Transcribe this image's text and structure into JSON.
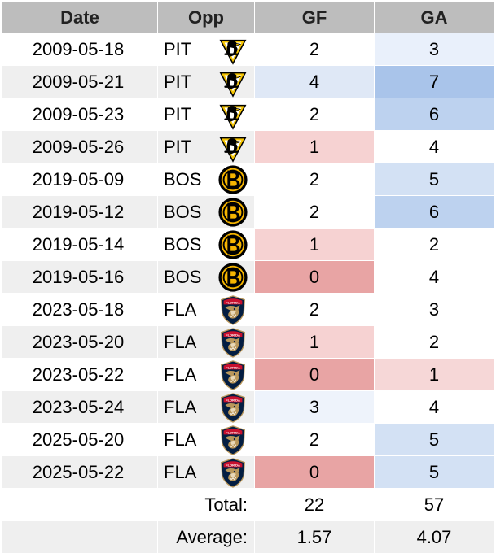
{
  "headers": {
    "date": "Date",
    "opp": "Opp",
    "gf": "GF",
    "ga": "GA"
  },
  "rows": [
    {
      "date": "2009-05-18",
      "opp": "PIT",
      "logo": "penguins-logo-icon",
      "gf": "2",
      "ga": "3",
      "gf_color": "#ffffff",
      "ga_color": "#e9f0fb"
    },
    {
      "date": "2009-05-21",
      "opp": "PIT",
      "logo": "penguins-logo-icon",
      "gf": "4",
      "ga": "7",
      "gf_color": "#dfe8f6",
      "ga_color": "#a9c4ea"
    },
    {
      "date": "2009-05-23",
      "opp": "PIT",
      "logo": "penguins-logo-icon",
      "gf": "2",
      "ga": "6",
      "gf_color": "#ffffff",
      "ga_color": "#bdd2ef"
    },
    {
      "date": "2009-05-26",
      "opp": "PIT",
      "logo": "penguins-logo-icon",
      "gf": "1",
      "ga": "4",
      "gf_color": "#f6d2d2",
      "ga_color": "#ffffff"
    },
    {
      "date": "2019-05-09",
      "opp": "BOS",
      "logo": "bruins-logo-icon",
      "gf": "2",
      "ga": "5",
      "gf_color": "#ffffff",
      "ga_color": "#d3e1f4"
    },
    {
      "date": "2019-05-12",
      "opp": "BOS",
      "logo": "bruins-logo-icon",
      "gf": "2",
      "ga": "6",
      "gf_color": "#ffffff",
      "ga_color": "#bdd2ef"
    },
    {
      "date": "2019-05-14",
      "opp": "BOS",
      "logo": "bruins-logo-icon",
      "gf": "1",
      "ga": "2",
      "gf_color": "#f6d2d2",
      "ga_color": "#ffffff"
    },
    {
      "date": "2019-05-16",
      "opp": "BOS",
      "logo": "bruins-logo-icon",
      "gf": "0",
      "ga": "4",
      "gf_color": "#e8a4a4",
      "ga_color": "#ffffff"
    },
    {
      "date": "2023-05-18",
      "opp": "FLA",
      "logo": "panthers-logo-icon",
      "gf": "2",
      "ga": "3",
      "gf_color": "#ffffff",
      "ga_color": "#ffffff"
    },
    {
      "date": "2023-05-20",
      "opp": "FLA",
      "logo": "panthers-logo-icon",
      "gf": "1",
      "ga": "2",
      "gf_color": "#f6d2d2",
      "ga_color": "#ffffff"
    },
    {
      "date": "2023-05-22",
      "opp": "FLA",
      "logo": "panthers-logo-icon",
      "gf": "0",
      "ga": "1",
      "gf_color": "#e8a4a4",
      "ga_color": "#f6d7d7"
    },
    {
      "date": "2023-05-24",
      "opp": "FLA",
      "logo": "panthers-logo-icon",
      "gf": "3",
      "ga": "4",
      "gf_color": "#eef3fb",
      "ga_color": "#ffffff"
    },
    {
      "date": "2025-05-20",
      "opp": "FLA",
      "logo": "panthers-logo-icon",
      "gf": "2",
      "ga": "5",
      "gf_color": "#ffffff",
      "ga_color": "#d3e1f4"
    },
    {
      "date": "2025-05-22",
      "opp": "FLA",
      "logo": "panthers-logo-icon",
      "gf": "0",
      "ga": "5",
      "gf_color": "#e8a4a4",
      "ga_color": "#d3e1f4"
    }
  ],
  "total": {
    "label": "Total:",
    "gf": "22",
    "ga": "57"
  },
  "average": {
    "label": "Average:",
    "gf": "1.57",
    "ga": "4.07"
  },
  "colors": {
    "header_bg": "#bdbdbd",
    "stripe_bg": "#efefef",
    "row_bg": "#ffffff",
    "grid": "#d6d6d6"
  }
}
